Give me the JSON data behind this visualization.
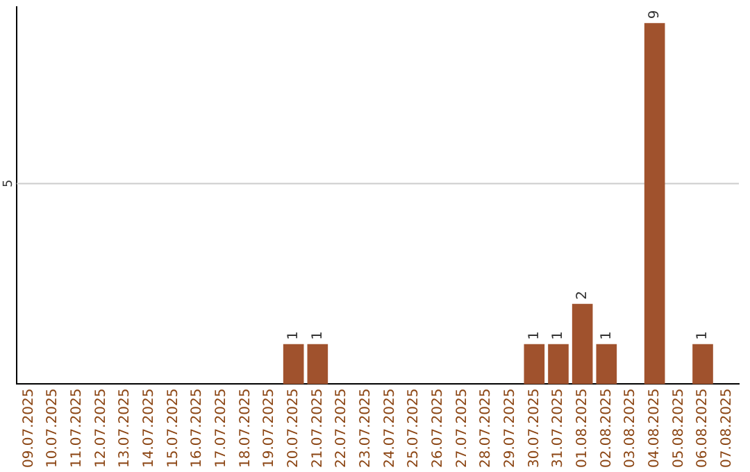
{
  "chart_data": {
    "type": "bar",
    "categories": [
      "09.07.2025",
      "10.07.2025",
      "11.07.2025",
      "12.07.2025",
      "13.07.2025",
      "14.07.2025",
      "15.07.2025",
      "16.07.2025",
      "17.07.2025",
      "18.07.2025",
      "19.07.2025",
      "20.07.2025",
      "21.07.2025",
      "22.07.2025",
      "23.07.2025",
      "24.07.2025",
      "25.07.2025",
      "26.07.2025",
      "27.07.2025",
      "28.07.2025",
      "29.07.2025",
      "30.07.2025",
      "31.07.2025",
      "01.08.2025",
      "02.08.2025",
      "03.08.2025",
      "04.08.2025",
      "05.08.2025",
      "06.08.2025",
      "07.08.2025"
    ],
    "values": [
      0,
      0,
      0,
      0,
      0,
      0,
      0,
      0,
      0,
      0,
      0,
      1,
      1,
      0,
      0,
      0,
      0,
      0,
      0,
      0,
      0,
      1,
      1,
      2,
      1,
      0,
      9,
      0,
      1,
      0
    ],
    "value_labels": [
      null,
      null,
      null,
      null,
      null,
      null,
      null,
      null,
      null,
      null,
      null,
      "1",
      "1",
      null,
      null,
      null,
      null,
      null,
      null,
      null,
      null,
      "1",
      "1",
      "2",
      "1",
      null,
      "9",
      null,
      "1",
      null
    ],
    "color": "#a0522d",
    "ylim": [
      0,
      9.4
    ],
    "ref_lines": [
      {
        "axis": "y",
        "value": 5,
        "label": "5",
        "color": "#cccccc"
      }
    ]
  }
}
